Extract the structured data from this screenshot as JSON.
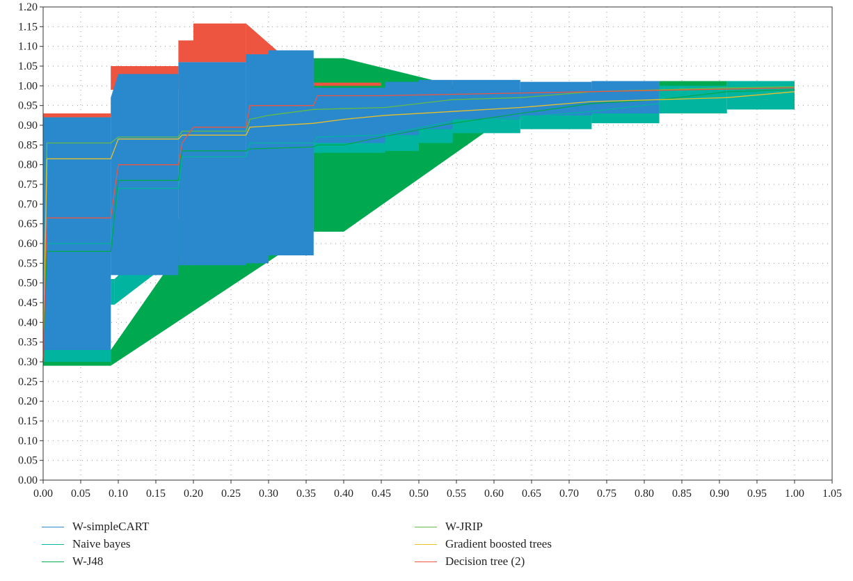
{
  "chart_data": {
    "type": "line",
    "title": "",
    "xlabel": "",
    "ylabel": "",
    "xlim": [
      0,
      1.05
    ],
    "ylim": [
      0,
      1.2
    ],
    "grid": true,
    "legend_placement": "bottom",
    "x_ticks": [
      "0.00",
      "0.05",
      "0.10",
      "0.15",
      "0.20",
      "0.25",
      "0.30",
      "0.35",
      "0.40",
      "0.45",
      "0.50",
      "0.55",
      "0.60",
      "0.65",
      "0.70",
      "0.75",
      "0.80",
      "0.85",
      "0.90",
      "0.95",
      "1.00",
      "1.05"
    ],
    "y_ticks": [
      "0.00",
      "0.05",
      "0.10",
      "0.15",
      "0.20",
      "0.25",
      "0.30",
      "0.35",
      "0.40",
      "0.45",
      "0.50",
      "0.55",
      "0.60",
      "0.65",
      "0.70",
      "0.75",
      "0.80",
      "0.85",
      "0.90",
      "0.95",
      "1.00",
      "1.05",
      "1.10",
      "1.15",
      "1.20"
    ],
    "series": [
      {
        "name": "W-simpleCART",
        "color": "#2A88CC",
        "band": [
          [
            0.0,
            0.33,
            0.92
          ],
          [
            0.09,
            0.33,
            0.92
          ],
          [
            0.09,
            0.52,
            0.97
          ],
          [
            0.1,
            0.52,
            1.03
          ],
          [
            0.18,
            0.52,
            1.03
          ],
          [
            0.18,
            0.545,
            1.06
          ],
          [
            0.27,
            0.545,
            1.06
          ],
          [
            0.27,
            0.55,
            1.08
          ],
          [
            0.3,
            0.55,
            1.08
          ],
          [
            0.3,
            0.57,
            1.09
          ],
          [
            0.36,
            0.57,
            1.09
          ],
          [
            0.36,
            0.855,
            0.995
          ],
          [
            0.455,
            0.855,
            0.995
          ],
          [
            0.455,
            0.875,
            1.01
          ],
          [
            0.5,
            0.875,
            1.01
          ],
          [
            0.5,
            0.89,
            1.015
          ],
          [
            0.545,
            0.89,
            1.015
          ],
          [
            0.545,
            0.915,
            1.015
          ],
          [
            0.635,
            0.915,
            1.015
          ],
          [
            0.635,
            0.925,
            1.01
          ],
          [
            0.73,
            0.925,
            1.01
          ],
          [
            0.73,
            0.93,
            1.012
          ],
          [
            0.82,
            0.93,
            1.012
          ]
        ]
      },
      {
        "name": "Naive bayes",
        "color": "#00B4A0",
        "band": [
          [
            0.0,
            0.3,
            0.92
          ],
          [
            0.09,
            0.3,
            0.92
          ],
          [
            0.09,
            0.445,
            0.51
          ],
          [
            0.095,
            0.445,
            0.51
          ],
          [
            0.36,
            0.83,
            0.99
          ],
          [
            0.455,
            0.83,
            0.99
          ],
          [
            0.455,
            0.835,
            0.99
          ],
          [
            0.5,
            0.835,
            0.99
          ],
          [
            0.5,
            0.855,
            0.99
          ],
          [
            0.545,
            0.855,
            0.99
          ],
          [
            0.545,
            0.88,
            0.99
          ],
          [
            0.635,
            0.88,
            0.99
          ],
          [
            0.635,
            0.89,
            0.99
          ],
          [
            0.73,
            0.89,
            0.99
          ],
          [
            0.73,
            0.905,
            0.995
          ],
          [
            0.82,
            0.905,
            0.995
          ],
          [
            0.82,
            0.93,
            1.0
          ],
          [
            0.91,
            0.93,
            1.0
          ],
          [
            0.91,
            0.94,
            1.012
          ],
          [
            1.0,
            0.94,
            1.012
          ]
        ],
        "line": [
          [
            0.0,
            0.3
          ],
          [
            0.005,
            0.6
          ],
          [
            0.09,
            0.6
          ],
          [
            0.1,
            0.74
          ],
          [
            0.18,
            0.74
          ],
          [
            0.185,
            0.82
          ],
          [
            0.27,
            0.82
          ],
          [
            0.275,
            0.855
          ],
          [
            0.36,
            0.855
          ],
          [
            0.365,
            0.87
          ],
          [
            0.45,
            0.875
          ],
          [
            0.545,
            0.91
          ],
          [
            0.635,
            0.92
          ],
          [
            0.73,
            0.935
          ],
          [
            0.82,
            0.955
          ],
          [
            0.91,
            0.975
          ],
          [
            1.0,
            0.985
          ]
        ]
      },
      {
        "name": "W-J48",
        "color": "#00A850",
        "band": [
          [
            0.0,
            0.29,
            0.33
          ],
          [
            0.09,
            0.29,
            0.33
          ],
          [
            0.36,
            0.63,
            1.07
          ],
          [
            0.4,
            0.63,
            1.07
          ],
          [
            0.635,
            0.945,
            0.96
          ],
          [
            0.73,
            0.945,
            0.96
          ],
          [
            0.82,
            0.99,
            1.012
          ],
          [
            0.91,
            0.99,
            1.012
          ]
        ],
        "line": [
          [
            0.0,
            0.3
          ],
          [
            0.005,
            0.58
          ],
          [
            0.09,
            0.58
          ],
          [
            0.1,
            0.76
          ],
          [
            0.18,
            0.76
          ],
          [
            0.185,
            0.835
          ],
          [
            0.27,
            0.835
          ],
          [
            0.275,
            0.84
          ],
          [
            0.36,
            0.845
          ],
          [
            0.365,
            0.85
          ],
          [
            0.4,
            0.85
          ],
          [
            0.45,
            0.87
          ],
          [
            0.545,
            0.905
          ],
          [
            0.635,
            0.93
          ],
          [
            0.73,
            0.955
          ],
          [
            0.82,
            0.965
          ],
          [
            0.91,
            0.985
          ],
          [
            1.0,
            0.99
          ]
        ]
      },
      {
        "name": "W-JRIP",
        "color": "#66BB44",
        "line": [
          [
            0.0,
            0.3
          ],
          [
            0.005,
            0.855
          ],
          [
            0.09,
            0.855
          ],
          [
            0.1,
            0.87
          ],
          [
            0.18,
            0.87
          ],
          [
            0.185,
            0.885
          ],
          [
            0.27,
            0.885
          ],
          [
            0.275,
            0.915
          ],
          [
            0.3,
            0.925
          ],
          [
            0.36,
            0.94
          ],
          [
            0.455,
            0.945
          ],
          [
            0.545,
            0.965
          ],
          [
            0.635,
            0.97
          ],
          [
            0.73,
            0.985
          ],
          [
            0.82,
            0.99
          ],
          [
            0.91,
            0.995
          ],
          [
            1.0,
            0.998
          ]
        ]
      },
      {
        "name": "Gradient boosted trees",
        "color": "#E8C02A",
        "line": [
          [
            0.0,
            0.3
          ],
          [
            0.005,
            0.815
          ],
          [
            0.09,
            0.815
          ],
          [
            0.1,
            0.865
          ],
          [
            0.18,
            0.865
          ],
          [
            0.185,
            0.875
          ],
          [
            0.27,
            0.875
          ],
          [
            0.275,
            0.895
          ],
          [
            0.36,
            0.905
          ],
          [
            0.4,
            0.915
          ],
          [
            0.455,
            0.925
          ],
          [
            0.545,
            0.935
          ],
          [
            0.635,
            0.945
          ],
          [
            0.73,
            0.96
          ],
          [
            0.82,
            0.965
          ],
          [
            0.91,
            0.97
          ],
          [
            1.0,
            0.985
          ]
        ]
      },
      {
        "name": "Decision tree (2)",
        "color": "#EE5540",
        "band": [
          [
            0.0,
            0.92,
            0.93
          ],
          [
            0.09,
            0.92,
            0.93
          ],
          [
            0.09,
            0.99,
            1.05
          ],
          [
            0.18,
            0.99,
            1.05
          ],
          [
            0.18,
            1.06,
            1.115
          ],
          [
            0.2,
            1.06,
            1.115
          ],
          [
            0.2,
            1.06,
            1.158
          ],
          [
            0.27,
            1.06,
            1.158
          ],
          [
            0.36,
            1.0,
            1.008
          ],
          [
            0.45,
            1.0,
            1.008
          ]
        ],
        "line": [
          [
            0.0,
            0.3
          ],
          [
            0.005,
            0.665
          ],
          [
            0.09,
            0.665
          ],
          [
            0.1,
            0.8
          ],
          [
            0.18,
            0.8
          ],
          [
            0.185,
            0.855
          ],
          [
            0.2,
            0.895
          ],
          [
            0.27,
            0.895
          ],
          [
            0.275,
            0.95
          ],
          [
            0.36,
            0.95
          ],
          [
            0.365,
            0.975
          ],
          [
            0.45,
            0.975
          ],
          [
            1.0,
            0.995
          ]
        ]
      }
    ]
  }
}
